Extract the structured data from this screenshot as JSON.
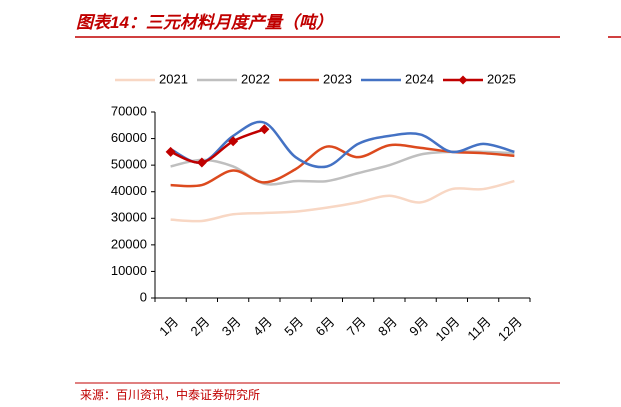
{
  "chart_data": {
    "type": "line",
    "title": "图表14：三元材料月度产量（吨）",
    "source": "来源：百川资讯，中泰证券研究所",
    "categories": [
      "1月",
      "2月",
      "3月",
      "4月",
      "5月",
      "6月",
      "7月",
      "8月",
      "9月",
      "10月",
      "11月",
      "12月"
    ],
    "series": [
      {
        "name": "2021",
        "color": "#f8d7c4",
        "values": [
          29500,
          29000,
          31500,
          32000,
          32500,
          34000,
          36000,
          38500,
          36000,
          41000,
          41000,
          44000
        ]
      },
      {
        "name": "2022",
        "color": "#bfbfbf",
        "values": [
          49500,
          52000,
          49500,
          43000,
          44000,
          44000,
          47000,
          50000,
          54000,
          55000,
          55000,
          54500
        ]
      },
      {
        "name": "2023",
        "color": "#dc4a1e",
        "values": [
          42500,
          42500,
          48000,
          43500,
          48500,
          57000,
          53000,
          57500,
          56500,
          55000,
          54500,
          53500
        ]
      },
      {
        "name": "2024",
        "color": "#4472c4",
        "values": [
          56000,
          51000,
          61000,
          66000,
          53000,
          49500,
          58000,
          61000,
          61500,
          55000,
          58000,
          55000
        ]
      },
      {
        "name": "2025",
        "color": "#c00000",
        "marker": "diamond",
        "values": [
          55000,
          51000,
          59000,
          63500,
          null,
          null,
          null,
          null,
          null,
          null,
          null,
          null
        ]
      }
    ],
    "ylim": [
      0,
      70000
    ],
    "yticks": [
      0,
      10000,
      20000,
      30000,
      40000,
      50000,
      60000,
      70000
    ],
    "legend": "top"
  }
}
